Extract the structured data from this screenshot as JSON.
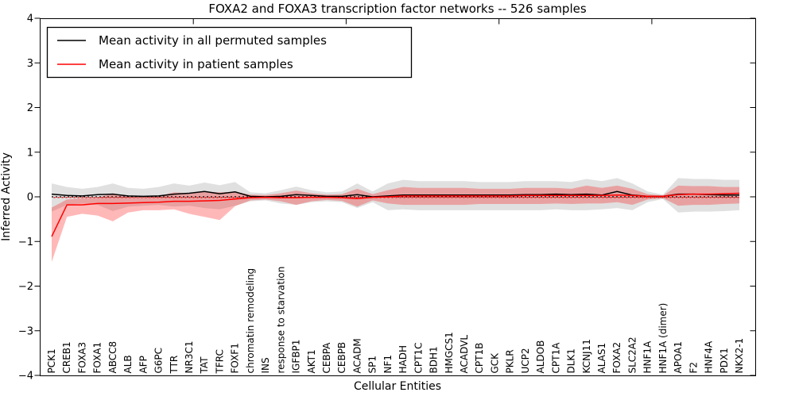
{
  "chart_data": {
    "type": "line",
    "title": "FOXA2 and FOXA3 transcription factor networks -- 526 samples",
    "xlabel": "Cellular Entities",
    "ylabel": "Inferred Activity",
    "ylim": [
      -4,
      4
    ],
    "ytick_labels": [
      "4",
      "3",
      "2",
      "1",
      "0",
      "−1",
      "−2",
      "−3",
      "−4"
    ],
    "ytick_values": [
      4,
      3,
      2,
      1,
      0,
      -1,
      -2,
      -3,
      -4
    ],
    "grid": false,
    "legend_position": "upper left",
    "reference_lines": [
      {
        "y": 0,
        "style": "dotted",
        "color": "#ff0000"
      },
      {
        "y": 0,
        "style": "dotted",
        "color": "#000000"
      }
    ],
    "categories": [
      "PCK1",
      "CREB1",
      "FOXA3",
      "FOXA1",
      "ABCC8",
      "ALB",
      "AFP",
      "G6PC",
      "TTR",
      "NR3C1",
      "TAT",
      "TFRC",
      "FOXF1",
      "chromatin remodeling",
      "INS",
      "response to starvation",
      "IGFBP1",
      "AKT1",
      "CEBPA",
      "CEBPB",
      "ACADM",
      "SP1",
      "NF1",
      "HADH",
      "CPT1C",
      "BDH1",
      "HMGCS1",
      "ACADVL",
      "CPT1B",
      "GCK",
      "PKLR",
      "UCP2",
      "ALDOB",
      "CPT1A",
      "DLK1",
      "KCNJ11",
      "ALAS1",
      "FOXA2",
      "SLC2A2",
      "HNF1A",
      "HNF1A (dimer)",
      "APOA1",
      "F2",
      "HNF4A",
      "PDX1",
      "NKX2-1"
    ],
    "series": [
      {
        "name": "Mean activity in all permuted samples",
        "color": "#000000",
        "band_color": "#999999",
        "band_opacity": 0.3,
        "values": [
          0.06,
          0.03,
          0.02,
          0.05,
          0.06,
          0.02,
          0.01,
          0.02,
          0.06,
          0.08,
          0.12,
          0.07,
          0.11,
          0.01,
          0.0,
          0.01,
          0.05,
          0.03,
          0.01,
          0.01,
          0.05,
          0.0,
          0.02,
          0.04,
          0.04,
          0.04,
          0.04,
          0.04,
          0.04,
          0.04,
          0.04,
          0.05,
          0.05,
          0.06,
          0.05,
          0.06,
          0.04,
          0.12,
          0.04,
          0.01,
          0.01,
          0.06,
          0.06,
          0.05,
          0.04,
          0.04
        ],
        "band_upper": [
          0.3,
          0.22,
          0.18,
          0.22,
          0.3,
          0.2,
          0.18,
          0.22,
          0.3,
          0.25,
          0.32,
          0.26,
          0.33,
          0.1,
          0.08,
          0.15,
          0.23,
          0.15,
          0.1,
          0.12,
          0.3,
          0.12,
          0.3,
          0.38,
          0.35,
          0.35,
          0.35,
          0.35,
          0.33,
          0.33,
          0.33,
          0.35,
          0.35,
          0.35,
          0.33,
          0.4,
          0.35,
          0.42,
          0.3,
          0.12,
          0.05,
          0.42,
          0.4,
          0.4,
          0.38,
          0.38
        ],
        "band_lower": [
          -0.33,
          -0.18,
          -0.15,
          -0.18,
          -0.32,
          -0.22,
          -0.2,
          -0.18,
          -0.22,
          -0.2,
          -0.25,
          -0.28,
          -0.2,
          -0.1,
          -0.08,
          -0.15,
          -0.18,
          -0.12,
          -0.1,
          -0.12,
          -0.25,
          -0.12,
          -0.3,
          -0.28,
          -0.3,
          -0.3,
          -0.3,
          -0.3,
          -0.3,
          -0.3,
          -0.3,
          -0.3,
          -0.3,
          -0.28,
          -0.3,
          -0.3,
          -0.28,
          -0.25,
          -0.3,
          -0.12,
          -0.05,
          -0.35,
          -0.33,
          -0.33,
          -0.32,
          -0.3
        ]
      },
      {
        "name": "Mean activity in patient samples",
        "color": "#ff0000",
        "band_color": "#ff0000",
        "band_opacity": 0.28,
        "values": [
          -0.89,
          -0.18,
          -0.18,
          -0.15,
          -0.15,
          -0.14,
          -0.13,
          -0.12,
          -0.1,
          -0.1,
          -0.09,
          -0.08,
          -0.05,
          -0.02,
          -0.01,
          -0.02,
          -0.02,
          -0.01,
          -0.01,
          -0.02,
          -0.04,
          -0.01,
          0.0,
          0.02,
          0.02,
          0.02,
          0.02,
          0.02,
          0.02,
          0.02,
          0.02,
          0.03,
          0.03,
          0.03,
          0.03,
          0.03,
          0.03,
          0.04,
          0.03,
          0.01,
          0.01,
          0.05,
          0.06,
          0.06,
          0.07,
          0.08
        ],
        "band_upper": [
          -0.24,
          -0.06,
          -0.03,
          -0.02,
          0.08,
          0.0,
          -0.02,
          0.02,
          0.1,
          0.08,
          0.12,
          0.1,
          0.11,
          0.05,
          0.04,
          0.08,
          0.14,
          0.08,
          0.05,
          0.06,
          0.18,
          0.06,
          0.15,
          0.22,
          0.2,
          0.2,
          0.2,
          0.2,
          0.18,
          0.18,
          0.18,
          0.2,
          0.2,
          0.2,
          0.18,
          0.25,
          0.2,
          0.25,
          0.18,
          0.06,
          0.03,
          0.25,
          0.24,
          0.24,
          0.22,
          0.22
        ],
        "band_lower": [
          -1.46,
          -0.45,
          -0.38,
          -0.42,
          -0.55,
          -0.35,
          -0.3,
          -0.3,
          -0.28,
          -0.38,
          -0.45,
          -0.52,
          -0.21,
          -0.08,
          -0.06,
          -0.1,
          -0.18,
          -0.1,
          -0.07,
          -0.09,
          -0.22,
          -0.08,
          -0.15,
          -0.18,
          -0.18,
          -0.18,
          -0.18,
          -0.18,
          -0.16,
          -0.16,
          -0.16,
          -0.16,
          -0.16,
          -0.15,
          -0.16,
          -0.15,
          -0.15,
          -0.12,
          -0.18,
          -0.06,
          -0.03,
          -0.2,
          -0.18,
          -0.18,
          -0.16,
          -0.15
        ]
      }
    ]
  }
}
